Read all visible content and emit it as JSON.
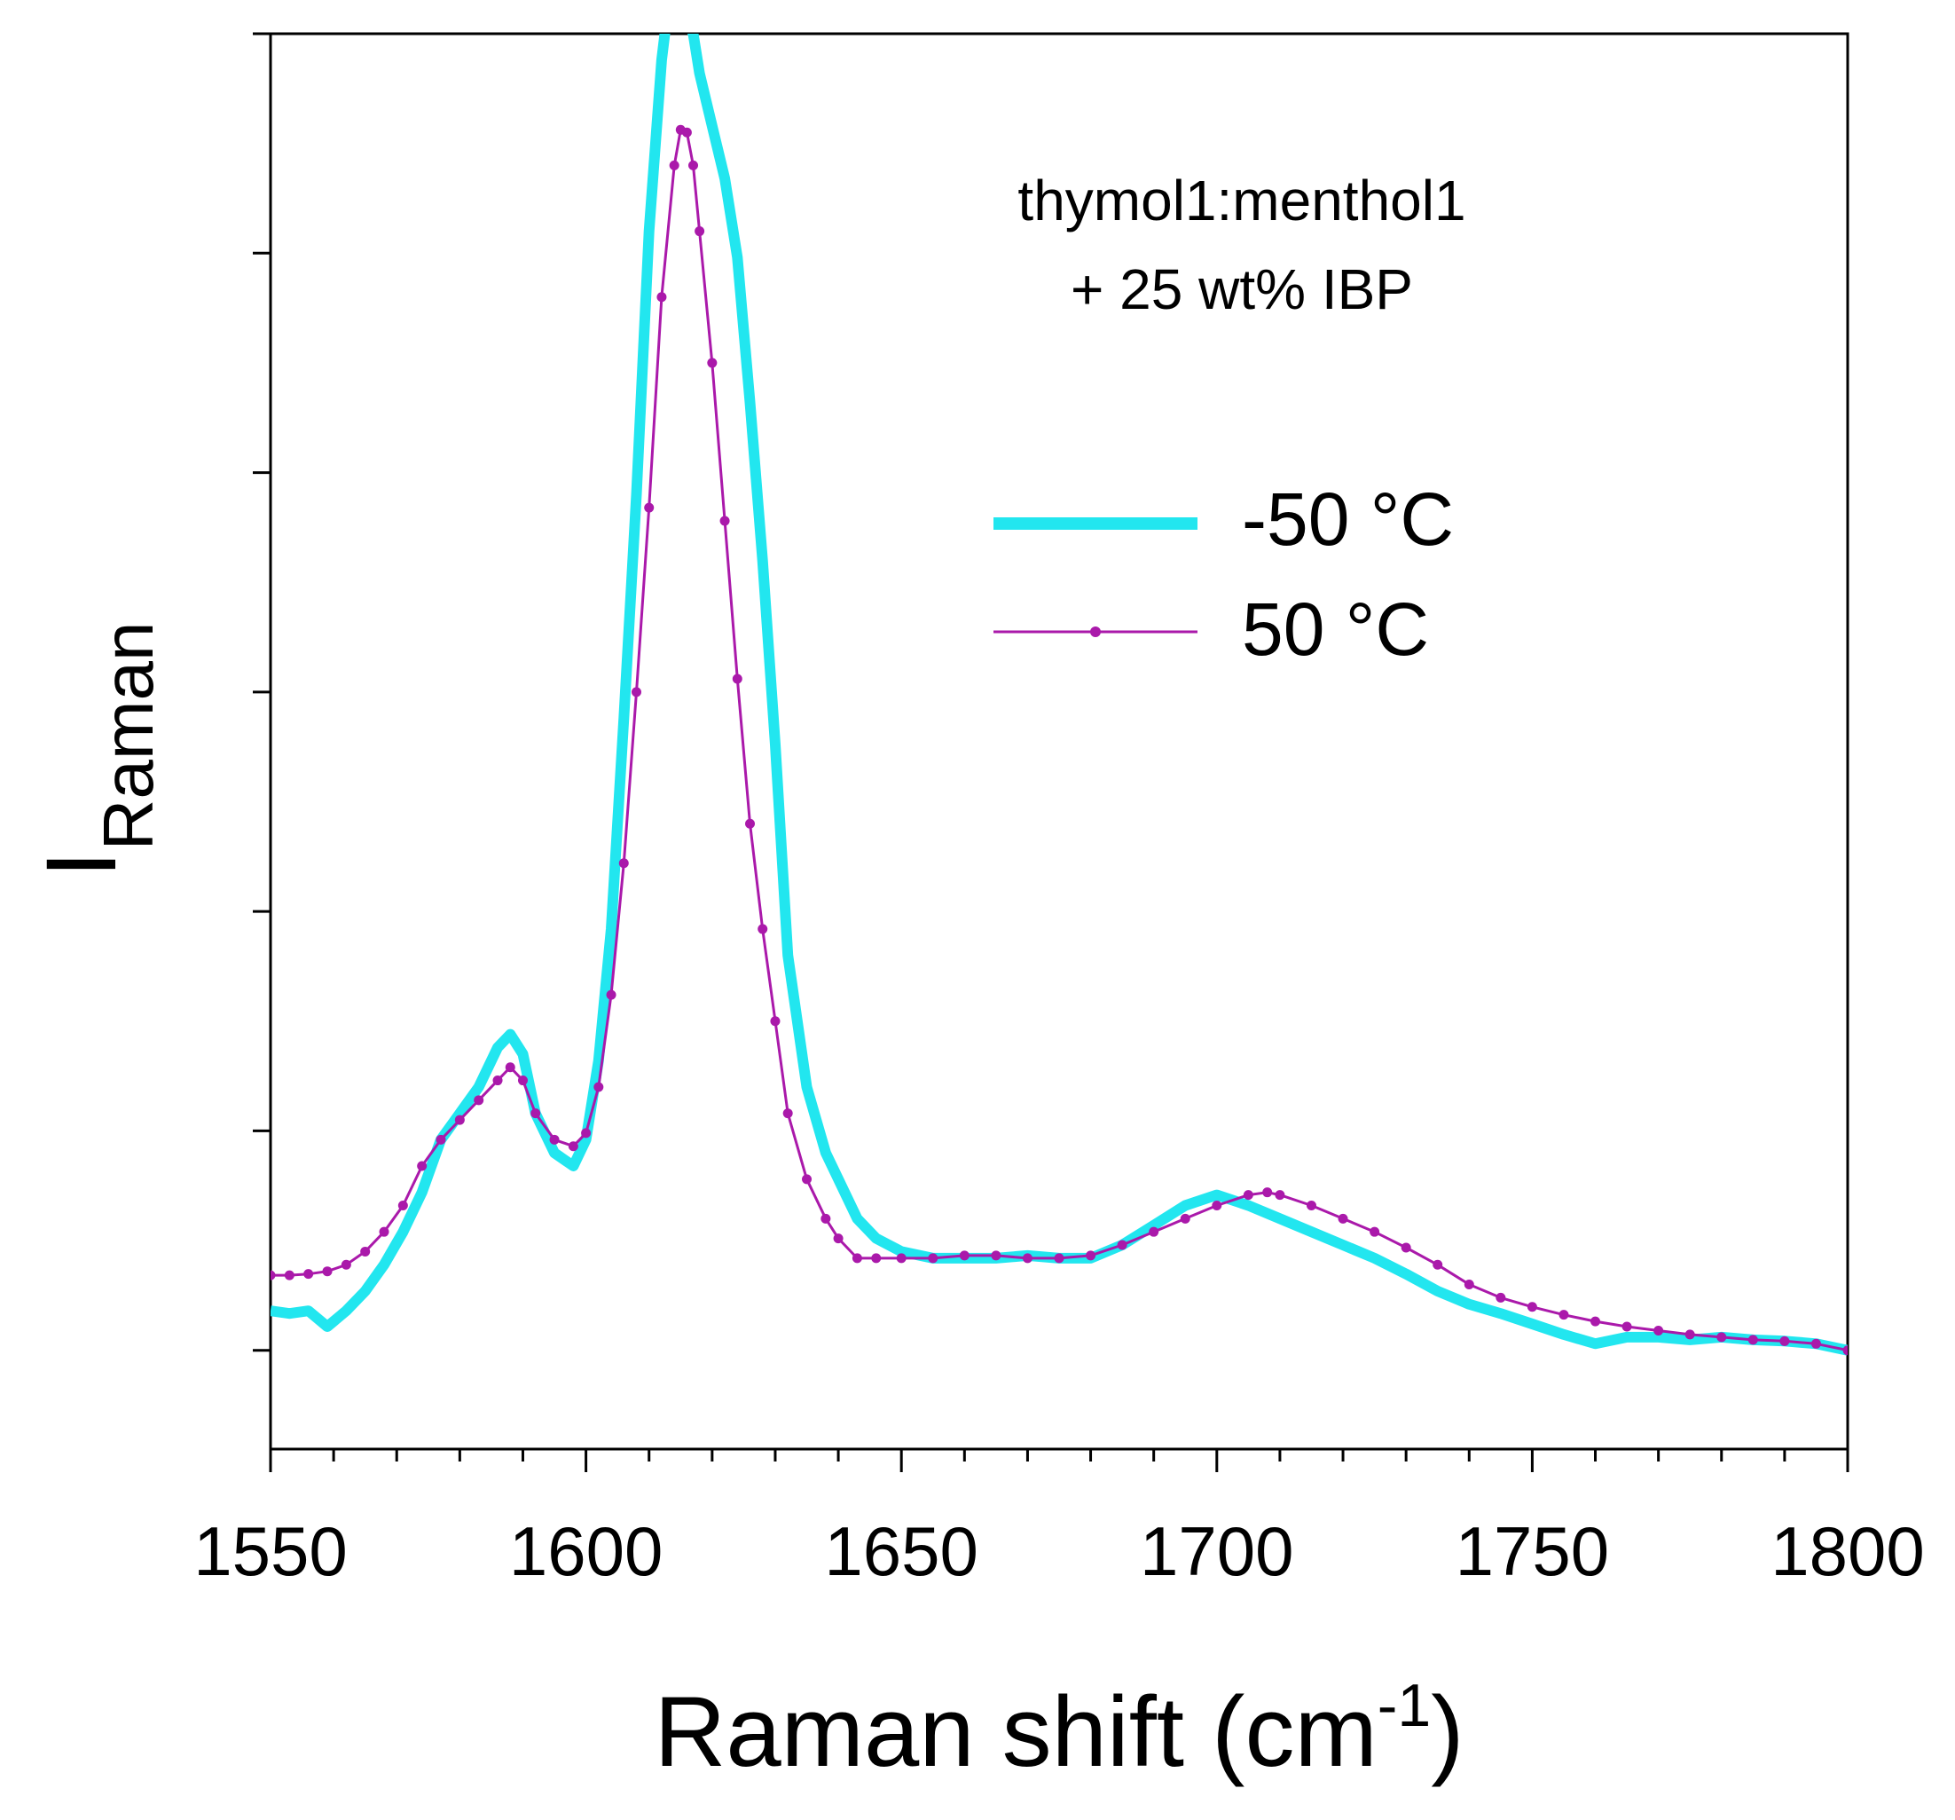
{
  "chart_data": {
    "type": "line",
    "title": "",
    "xlabel": "Raman shift (cm",
    "xlabel_superscript": "-1",
    "xlabel_close": ")",
    "ylabel_main": "I",
    "ylabel_sub": "Raman",
    "xlim": [
      1550,
      1800
    ],
    "ylim": [
      0,
      1.0
    ],
    "x_ticks": [
      "1550",
      "1600",
      "1650",
      "1700",
      "1750",
      "1800"
    ],
    "y_ticks_count": 7,
    "grid": false,
    "annotation_lines": [
      "thymol1:menthol1",
      "+ 25 wt% IBP"
    ],
    "legend_position": "upper-right",
    "series": [
      {
        "name": "-50 °C",
        "color": "#22e6ef",
        "marker": "none",
        "x": [
          1550,
          1553,
          1556,
          1559,
          1562,
          1565,
          1568,
          1571,
          1574,
          1577,
          1580,
          1583,
          1586,
          1588,
          1590,
          1592,
          1595,
          1598,
          1600,
          1602,
          1604,
          1606,
          1608,
          1610,
          1612,
          1613,
          1614,
          1615,
          1616,
          1617,
          1618,
          1620,
          1622,
          1624,
          1626,
          1628,
          1630,
          1632,
          1635,
          1638,
          1640,
          1643,
          1646,
          1650,
          1655,
          1660,
          1665,
          1670,
          1675,
          1680,
          1685,
          1690,
          1695,
          1700,
          1705,
          1710,
          1715,
          1720,
          1725,
          1730,
          1735,
          1740,
          1745,
          1750,
          1755,
          1760,
          1765,
          1770,
          1775,
          1780,
          1785,
          1790,
          1795,
          1800
        ],
        "y": [
          0.03,
          0.028,
          0.03,
          0.018,
          0.03,
          0.045,
          0.065,
          0.09,
          0.12,
          0.16,
          0.18,
          0.2,
          0.23,
          0.24,
          0.225,
          0.18,
          0.15,
          0.14,
          0.16,
          0.22,
          0.32,
          0.48,
          0.65,
          0.85,
          0.98,
          1.02,
          1.04,
          1.03,
          1.01,
          1.0,
          0.97,
          0.93,
          0.89,
          0.83,
          0.72,
          0.6,
          0.46,
          0.3,
          0.2,
          0.15,
          0.13,
          0.1,
          0.085,
          0.075,
          0.07,
          0.07,
          0.07,
          0.072,
          0.07,
          0.07,
          0.08,
          0.095,
          0.11,
          0.118,
          0.11,
          0.1,
          0.09,
          0.08,
          0.07,
          0.058,
          0.045,
          0.035,
          0.028,
          0.02,
          0.012,
          0.005,
          0.01,
          0.01,
          0.008,
          0.01,
          0.008,
          0.007,
          0.005,
          0.0
        ]
      },
      {
        "name": "50 °C",
        "color": "#aa19aa",
        "marker": "circle",
        "x": [
          1550,
          1553,
          1556,
          1559,
          1562,
          1565,
          1568,
          1571,
          1574,
          1577,
          1580,
          1583,
          1586,
          1588,
          1590,
          1592,
          1595,
          1598,
          1600,
          1602,
          1604,
          1606,
          1608,
          1610,
          1612,
          1614,
          1615,
          1616,
          1617,
          1618,
          1620,
          1622,
          1624,
          1626,
          1628,
          1630,
          1632,
          1635,
          1638,
          1640,
          1643,
          1646,
          1650,
          1655,
          1660,
          1665,
          1670,
          1675,
          1680,
          1685,
          1690,
          1695,
          1700,
          1705,
          1708,
          1710,
          1715,
          1720,
          1725,
          1730,
          1735,
          1740,
          1745,
          1750,
          1755,
          1760,
          1765,
          1770,
          1775,
          1780,
          1785,
          1790,
          1795,
          1800
        ],
        "y": [
          0.057,
          0.057,
          0.058,
          0.06,
          0.065,
          0.075,
          0.09,
          0.11,
          0.14,
          0.16,
          0.175,
          0.19,
          0.205,
          0.215,
          0.205,
          0.18,
          0.16,
          0.155,
          0.165,
          0.2,
          0.27,
          0.37,
          0.5,
          0.64,
          0.8,
          0.9,
          0.927,
          0.925,
          0.9,
          0.85,
          0.75,
          0.63,
          0.51,
          0.4,
          0.32,
          0.25,
          0.18,
          0.13,
          0.1,
          0.085,
          0.07,
          0.07,
          0.07,
          0.07,
          0.072,
          0.072,
          0.07,
          0.07,
          0.072,
          0.08,
          0.09,
          0.1,
          0.11,
          0.118,
          0.12,
          0.118,
          0.11,
          0.1,
          0.09,
          0.078,
          0.065,
          0.05,
          0.04,
          0.033,
          0.027,
          0.022,
          0.018,
          0.015,
          0.012,
          0.01,
          0.008,
          0.007,
          0.005,
          0.0
        ]
      }
    ]
  }
}
